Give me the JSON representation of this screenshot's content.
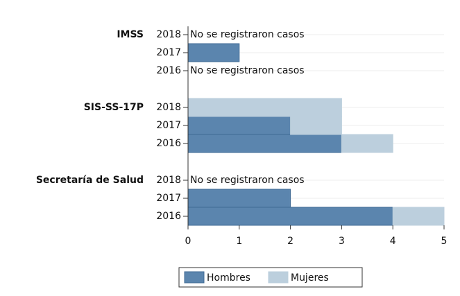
{
  "chart_data": {
    "type": "stacked-barh",
    "groups": [
      {
        "name": "IMSS",
        "categories": [
          "2018",
          "2017",
          "2016"
        ]
      },
      {
        "name": "SIS-SS-17P",
        "categories": [
          "2018",
          "2017",
          "2016"
        ]
      },
      {
        "name": "Secretaría de Salud",
        "categories": [
          "2018",
          "2017",
          "2016"
        ]
      }
    ],
    "series": [
      {
        "name": "Hombres",
        "color": "#5b85ae",
        "values": [
          null,
          1,
          null,
          null,
          2,
          3,
          null,
          2,
          4
        ]
      },
      {
        "name": "Mujeres",
        "color": "#bccfdd",
        "values": [
          null,
          null,
          null,
          3,
          1,
          1,
          null,
          null,
          1
        ]
      }
    ],
    "notes": [
      {
        "category": 0,
        "text": "No se registraron casos"
      },
      {
        "category": 2,
        "text": "No se registraron casos"
      },
      {
        "category": 6,
        "text": "No se registraron casos"
      }
    ],
    "xlim": [
      0,
      5
    ],
    "xticks": [
      0,
      1,
      2,
      3,
      4,
      5
    ],
    "grid": true
  }
}
